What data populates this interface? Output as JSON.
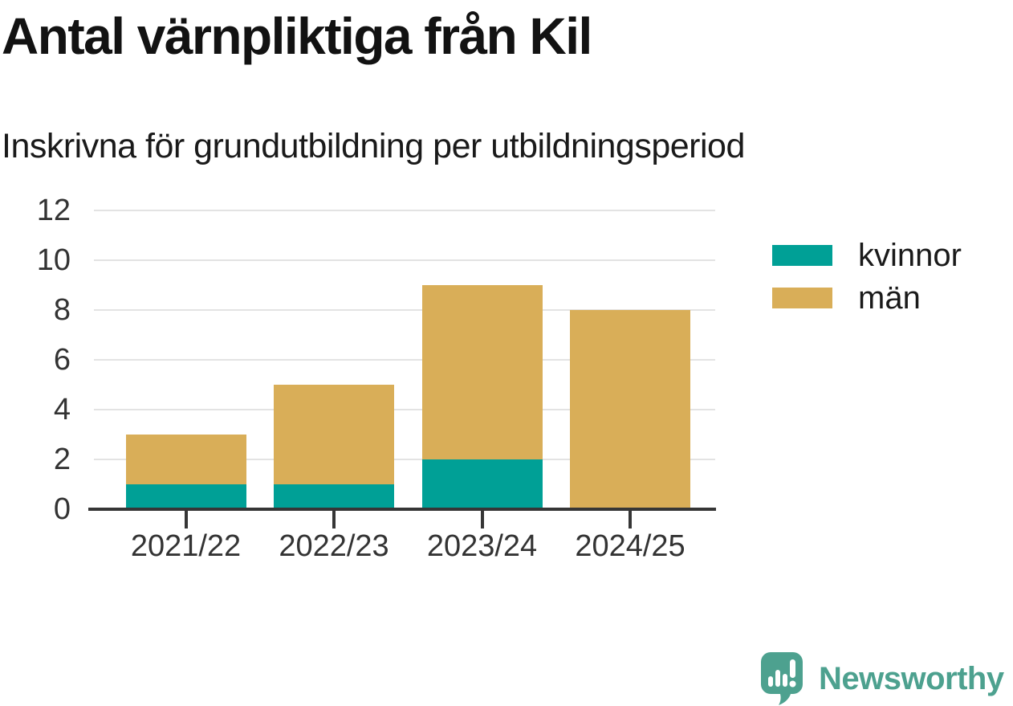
{
  "header": {
    "title": "Antal värnpliktiga från Kil",
    "subtitle": "Inskrivna för grundutbildning per utbildningsperiod"
  },
  "chart_data": {
    "type": "bar",
    "stacked": true,
    "title": "Antal värnpliktiga från Kil",
    "subtitle": "Inskrivna för grundutbildning per utbildningsperiod",
    "categories": [
      "2021/22",
      "2022/23",
      "2023/24",
      "2024/25"
    ],
    "series": [
      {
        "name": "kvinnor",
        "color": "#00A096",
        "values": [
          1,
          1,
          2,
          0
        ]
      },
      {
        "name": "män",
        "color": "#D9AE58",
        "values": [
          2,
          4,
          7,
          8
        ]
      }
    ],
    "totals": [
      3,
      5,
      9,
      8
    ],
    "xlabel": "",
    "ylabel": "",
    "ylim": [
      0,
      12
    ],
    "yticks": [
      0,
      2,
      4,
      6,
      8,
      10,
      12
    ],
    "grid": "horizontal-gridlines",
    "legend_position": "right"
  },
  "footer": {
    "brand_name": "Newsworthy",
    "brand_color": "#4DA18F",
    "logo_icon": "newsworthy-bar-chart-speech-bubble-icon"
  },
  "colors": {
    "background": "#FFFFFF",
    "title_text": "#121212",
    "subtitle_text": "#1A1A1A",
    "axis_text": "#333333",
    "gridline": "#E3E3E3",
    "axis_line": "#363636",
    "kvinnor": "#00A096",
    "man": "#D9AE58",
    "brand": "#4DA18F"
  }
}
